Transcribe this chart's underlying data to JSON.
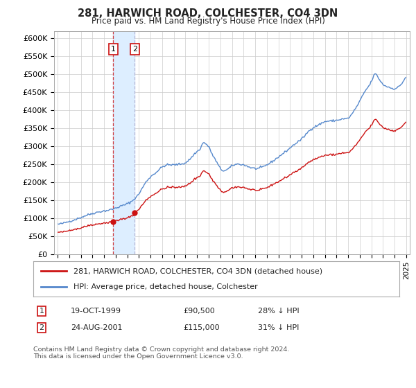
{
  "title": "281, HARWICH ROAD, COLCHESTER, CO4 3DN",
  "subtitle": "Price paid vs. HM Land Registry's House Price Index (HPI)",
  "ylim": [
    0,
    620000
  ],
  "yticks": [
    0,
    50000,
    100000,
    150000,
    200000,
    250000,
    300000,
    350000,
    400000,
    450000,
    500000,
    550000,
    600000
  ],
  "ytick_labels": [
    "£0",
    "£50K",
    "£100K",
    "£150K",
    "£200K",
    "£250K",
    "£300K",
    "£350K",
    "£400K",
    "£450K",
    "£500K",
    "£550K",
    "£600K"
  ],
  "hpi_color": "#5588cc",
  "price_color": "#cc1111",
  "vline1_color": "#cc1111",
  "vline2_color": "#aaaacc",
  "purchase1_date": 1999.79,
  "purchase1_price": 90500,
  "purchase2_date": 2001.64,
  "purchase2_price": 115000,
  "legend_line1": "281, HARWICH ROAD, COLCHESTER, CO4 3DN (detached house)",
  "legend_line2": "HPI: Average price, detached house, Colchester",
  "table_row1": [
    "1",
    "19-OCT-1999",
    "£90,500",
    "28% ↓ HPI"
  ],
  "table_row2": [
    "2",
    "24-AUG-2001",
    "£115,000",
    "31% ↓ HPI"
  ],
  "footer": "Contains HM Land Registry data © Crown copyright and database right 2024.\nThis data is licensed under the Open Government Licence v3.0.",
  "background_color": "#ffffff",
  "grid_color": "#cccccc",
  "span_color": "#ddeeff",
  "xlim_left": 1994.7,
  "xlim_right": 2025.3
}
